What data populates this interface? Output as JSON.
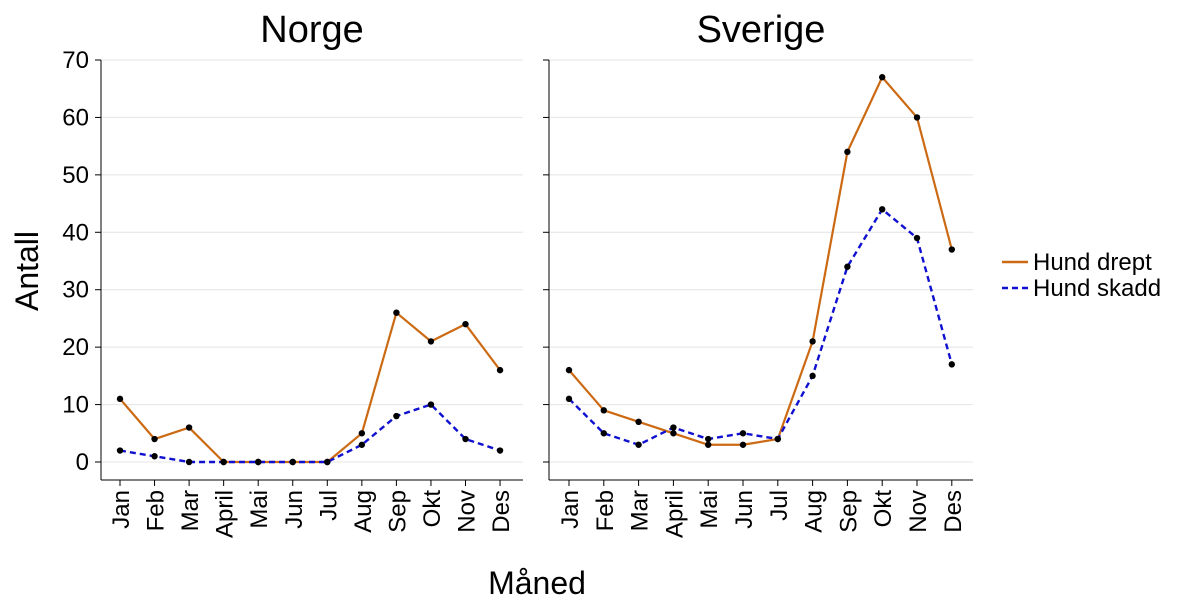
{
  "chart_data": {
    "type": "line",
    "xlabel": "Måned",
    "ylabel": "Antall",
    "ylim": [
      0,
      70
    ],
    "yticks": [
      "0",
      "10",
      "20",
      "30",
      "40",
      "50",
      "60",
      "70"
    ],
    "categories": [
      "Jan",
      "Feb",
      "Mar",
      "April",
      "Mai",
      "Jun",
      "Jul",
      "Aug",
      "Sep",
      "Okt",
      "Nov",
      "Des"
    ],
    "grid": "horizontal",
    "legend_position": "right",
    "legend": [
      {
        "name": "Hund drept",
        "color": "#cc6a14",
        "style": "solid"
      },
      {
        "name": "Hund skadd",
        "color": "#1010d0",
        "style": "dashed"
      }
    ],
    "panels": [
      {
        "title": "Norge",
        "series": [
          {
            "name": "Hund drept",
            "values": [
              11,
              4,
              6,
              0,
              0,
              0,
              0,
              5,
              26,
              21,
              24,
              16
            ]
          },
          {
            "name": "Hund skadd",
            "values": [
              2,
              1,
              0,
              0,
              0,
              0,
              0,
              3,
              8,
              10,
              4,
              2
            ]
          }
        ]
      },
      {
        "title": "Sverige",
        "series": [
          {
            "name": "Hund drept",
            "values": [
              16,
              9,
              7,
              5,
              3,
              3,
              4,
              21,
              54,
              67,
              60,
              37
            ]
          },
          {
            "name": "Hund skadd",
            "values": [
              11,
              5,
              3,
              6,
              4,
              5,
              4,
              15,
              34,
              44,
              39,
              17
            ]
          }
        ]
      }
    ]
  }
}
